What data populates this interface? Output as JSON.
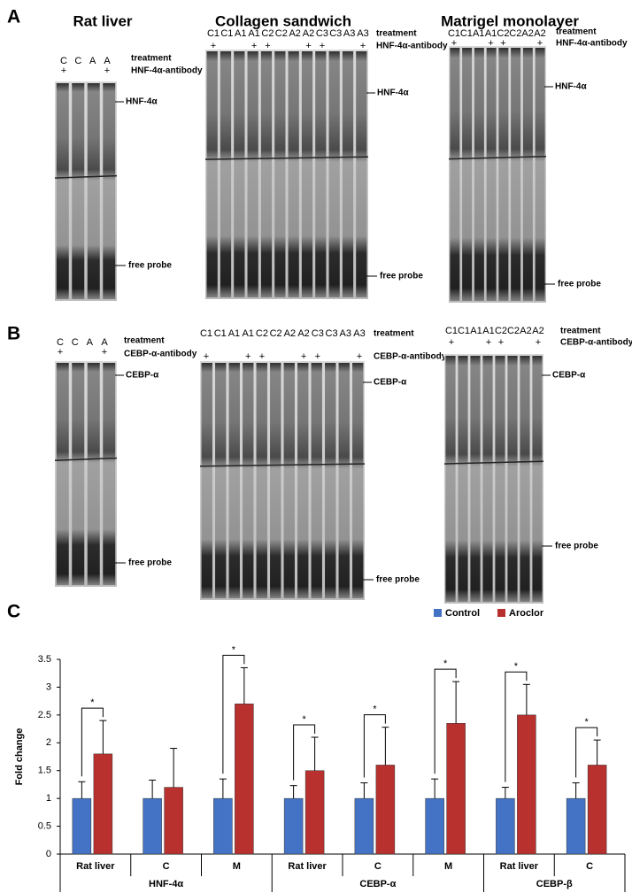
{
  "panels": {
    "A": {
      "label": "A",
      "gels": [
        {
          "title": "Rat liver",
          "lanes": [
            "C",
            "C",
            "A",
            "A"
          ],
          "antibody": [
            "+",
            null,
            null,
            "+"
          ],
          "treatment_label": "treatment",
          "antibody_label": "HNF-4α-antibody",
          "band_label": "HNF-4α",
          "probe_label": "free probe"
        },
        {
          "title": "Collagen sandwich",
          "lanes": [
            "C1",
            "C1",
            "A1",
            "A1",
            "C2",
            "C2",
            "A2",
            "A2",
            "C3",
            "C3",
            "A3",
            "A3"
          ],
          "antibody": [
            "+",
            null,
            null,
            "+",
            "+",
            null,
            null,
            "+",
            "+",
            null,
            null,
            "+"
          ],
          "treatment_label": "treatment",
          "antibody_label": "HNF-4α-antibody",
          "band_label": "HNF-4α",
          "probe_label": "free probe"
        },
        {
          "title": "Matrigel monolayer",
          "lanes": [
            "C1",
            "C1",
            "A1",
            "A1",
            "C2",
            "C2",
            "A2",
            "A2"
          ],
          "antibody": [
            "+",
            null,
            null,
            "+",
            "+",
            null,
            null,
            "+"
          ],
          "treatment_label": "treatment",
          "antibody_label": "HNF-4α-antibody",
          "band_label": "HNF-4α",
          "probe_label": "free probe"
        }
      ]
    },
    "B": {
      "label": "B",
      "gels": [
        {
          "lanes": [
            "C",
            "C",
            "A",
            "A"
          ],
          "antibody": [
            "+",
            null,
            null,
            "+"
          ],
          "treatment_label": "treatment",
          "antibody_label": "CEBP-α-antibody",
          "band_label": "CEBP-α",
          "probe_label": "free probe"
        },
        {
          "lanes": [
            "C1",
            "C1",
            "A1",
            "A1",
            "C2",
            "C2",
            "A2",
            "A2",
            "C3",
            "C3",
            "A3",
            "A3"
          ],
          "antibody": [
            "+",
            null,
            null,
            "+",
            "+",
            null,
            null,
            "+",
            "+",
            null,
            null,
            "+"
          ],
          "treatment_label": "treatment",
          "antibody_label": "CEBP-α-antibody",
          "band_label": "CEBP-α",
          "probe_label": "free probe"
        },
        {
          "lanes": [
            "C1",
            "C1",
            "A1",
            "A1",
            "C2",
            "C2",
            "A2",
            "A2"
          ],
          "antibody": [
            "+",
            null,
            null,
            "+",
            "+",
            null,
            null,
            "+"
          ],
          "treatment_label": "treatment",
          "antibody_label": "CEBP-α-antibody",
          "band_label": "CEBP-α",
          "probe_label": "free probe"
        }
      ]
    }
  },
  "chart_data": {
    "type": "bar",
    "panel_label": "C",
    "y_label": "Fold change",
    "groups": [
      {
        "name": "HNF-4α",
        "categories": [
          "Rat liver",
          "C",
          "M"
        ]
      },
      {
        "name": "CEBP-α",
        "categories": [
          "Rat liver",
          "C",
          "M"
        ]
      },
      {
        "name": "CEBP-β",
        "categories": [
          "Rat liver",
          "C"
        ]
      }
    ],
    "series": [
      {
        "name": "Control",
        "color": "#4472c4",
        "values": [
          1,
          1,
          1,
          1,
          1,
          1,
          1,
          1
        ],
        "errors": [
          0.3,
          0.33,
          0.35,
          0.23,
          0.28,
          0.35,
          0.2,
          0.28
        ]
      },
      {
        "name": "Aroclor",
        "color": "#b8312f",
        "values": [
          1.8,
          1.2,
          2.7,
          1.5,
          1.6,
          2.35,
          2.5,
          1.6
        ],
        "errors": [
          0.6,
          0.7,
          0.65,
          0.6,
          0.68,
          0.75,
          0.55,
          0.45
        ]
      }
    ],
    "significance": [
      "*",
      null,
      "*",
      "*",
      "*",
      "*",
      "*",
      "*"
    ],
    "ylim": [
      0,
      3.5
    ],
    "yticks": [
      0,
      0.5,
      1,
      1.5,
      2,
      2.5,
      3,
      3.5
    ],
    "legend": "top-right"
  }
}
